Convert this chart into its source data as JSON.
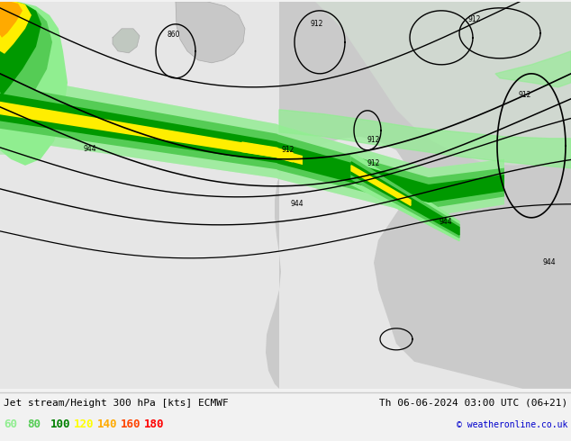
{
  "title_left": "Jet stream/Height 300 hPa [kts] ECMWF",
  "title_right": "Th 06-06-2024 03:00 UTC (06+21)",
  "copyright": "© weatheronline.co.uk",
  "legend_values": [
    "60",
    "80",
    "100",
    "120",
    "140",
    "160",
    "180"
  ],
  "legend_colors": [
    "#90ee90",
    "#55cc55",
    "#008000",
    "#ffff00",
    "#ffaa00",
    "#ff4400",
    "#ff0000"
  ],
  "bg_color_ocean": "#e8e8e8",
  "bg_color_land": "#c8ddc8",
  "figsize": [
    6.34,
    4.9
  ],
  "dpi": 100,
  "title_fontsize": 8,
  "legend_fontsize": 9,
  "info_bar_color": "#f2f2f2"
}
